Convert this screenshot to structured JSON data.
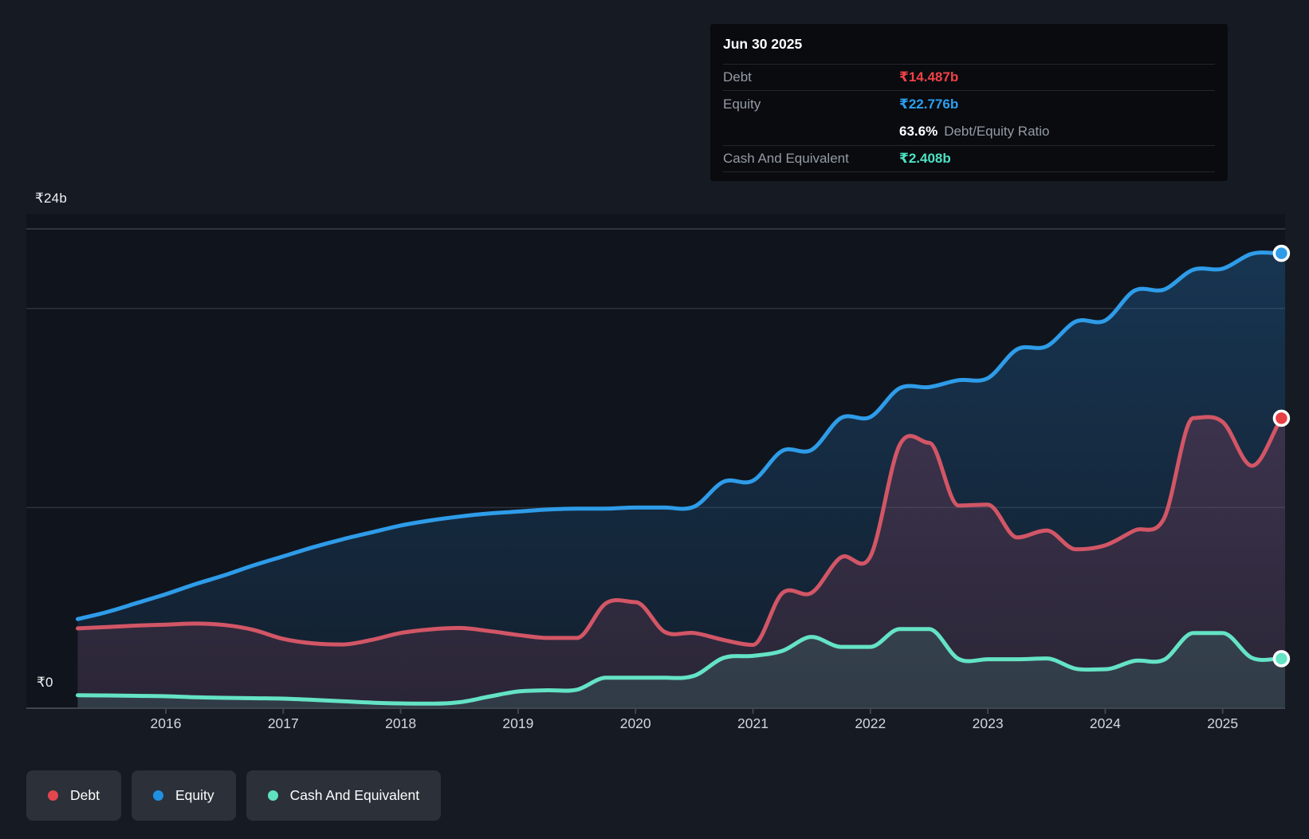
{
  "tooltip": {
    "date": "Jun 30 2025",
    "rows": [
      {
        "label": "Debt",
        "value": "₹14.487b",
        "color": "#f04247"
      },
      {
        "label": "Equity",
        "value": "₹22.776b",
        "color": "#2b9ff0"
      },
      {
        "label": "Cash And Equivalent",
        "value": "₹2.408b",
        "color": "#4ce2c2"
      }
    ],
    "ratio": {
      "value": "63.6%",
      "label": "Debt/Equity Ratio"
    }
  },
  "axis": {
    "y_top_label": "₹24b",
    "y_zero_label": "₹0",
    "years": [
      "2016",
      "2017",
      "2018",
      "2019",
      "2020",
      "2021",
      "2022",
      "2023",
      "2024",
      "2025"
    ]
  },
  "legend": {
    "items": [
      {
        "label": "Debt",
        "color": "#e4464e"
      },
      {
        "label": "Equity",
        "color": "#2090e2"
      },
      {
        "label": "Cash And Equivalent",
        "color": "#5fe1c1"
      }
    ]
  },
  "chart_data": {
    "type": "area",
    "unit": "₹ billions (INR)",
    "xlabel": "Year",
    "ylabel": "₹ value",
    "ylim": [
      0,
      24
    ],
    "x_range": [
      2015.25,
      2025.5
    ],
    "grid": "horizontal",
    "legend_position": "bottom-left",
    "plot_bg": "#10151d",
    "axis_color": "#40454d",
    "gridline_strong": "#3a3f47",
    "gridline_faint": "#2c313a",
    "x_ticks": [
      2016,
      2017,
      2018,
      2019,
      2020,
      2021,
      2022,
      2023,
      2024,
      2025
    ],
    "y_gridlines": [
      {
        "value": 24,
        "label": "₹24b",
        "strong": true
      },
      {
        "value": 20,
        "label": "",
        "strong": false
      },
      {
        "value": 10,
        "label": "",
        "strong": false
      },
      {
        "value": 0,
        "label": "₹0",
        "strong": true
      }
    ],
    "series": [
      {
        "name": "Equity",
        "color": "#2e9ce9",
        "dot_color": "#2e9ce9",
        "fill_from": "rgba(40,125,200,0.32)",
        "fill_to": "rgba(40,125,200,0.10)",
        "end_value": 22.776,
        "points": [
          [
            2015.25,
            4.4
          ],
          [
            2015.5,
            4.75
          ],
          [
            2015.75,
            5.2
          ],
          [
            2016,
            5.65
          ],
          [
            2016.25,
            6.15
          ],
          [
            2016.5,
            6.6
          ],
          [
            2016.75,
            7.1
          ],
          [
            2017,
            7.55
          ],
          [
            2017.25,
            8.0
          ],
          [
            2017.5,
            8.4
          ],
          [
            2017.75,
            8.75
          ],
          [
            2018,
            9.1
          ],
          [
            2018.25,
            9.35
          ],
          [
            2018.5,
            9.55
          ],
          [
            2018.75,
            9.7
          ],
          [
            2019,
            9.8
          ],
          [
            2019.25,
            9.9
          ],
          [
            2019.5,
            9.95
          ],
          [
            2019.75,
            9.95
          ],
          [
            2020,
            10.0
          ],
          [
            2020.25,
            10.0
          ],
          [
            2020.5,
            10.05
          ],
          [
            2020.75,
            11.3
          ],
          [
            2021,
            11.35
          ],
          [
            2021.25,
            12.85
          ],
          [
            2021.5,
            12.9
          ],
          [
            2021.75,
            14.5
          ],
          [
            2022,
            14.55
          ],
          [
            2022.25,
            16.0
          ],
          [
            2022.5,
            16.05
          ],
          [
            2022.75,
            16.4
          ],
          [
            2023,
            16.5
          ],
          [
            2023.25,
            17.95
          ],
          [
            2023.5,
            18.1
          ],
          [
            2023.75,
            19.35
          ],
          [
            2024,
            19.4
          ],
          [
            2024.25,
            20.9
          ],
          [
            2024.5,
            20.95
          ],
          [
            2024.75,
            21.95
          ],
          [
            2025,
            22.0
          ],
          [
            2025.25,
            22.75
          ],
          [
            2025.5,
            22.776
          ]
        ]
      },
      {
        "name": "Debt",
        "color": "#d25666",
        "dot_color": "#e93e44",
        "fill_from": "rgba(185,70,100,0.30)",
        "fill_to": "rgba(185,70,100,0.14)",
        "end_value": 14.487,
        "points": [
          [
            2015.25,
            3.93
          ],
          [
            2015.5,
            4.0
          ],
          [
            2015.75,
            4.07
          ],
          [
            2016,
            4.12
          ],
          [
            2016.25,
            4.17
          ],
          [
            2016.5,
            4.1
          ],
          [
            2016.75,
            3.85
          ],
          [
            2017,
            3.4
          ],
          [
            2017.25,
            3.18
          ],
          [
            2017.5,
            3.12
          ],
          [
            2017.75,
            3.35
          ],
          [
            2018,
            3.7
          ],
          [
            2018.25,
            3.88
          ],
          [
            2018.5,
            3.95
          ],
          [
            2018.75,
            3.8
          ],
          [
            2019,
            3.6
          ],
          [
            2019.25,
            3.45
          ],
          [
            2019.5,
            3.45
          ],
          [
            2019.75,
            5.2
          ],
          [
            2020,
            5.25
          ],
          [
            2020.25,
            3.75
          ],
          [
            2020.5,
            3.7
          ],
          [
            2020.75,
            3.35
          ],
          [
            2021,
            3.1
          ],
          [
            2021.25,
            5.7
          ],
          [
            2021.5,
            5.72
          ],
          [
            2021.75,
            7.5
          ],
          [
            2022,
            7.55
          ],
          [
            2022.25,
            13.15
          ],
          [
            2022.5,
            13.25
          ],
          [
            2022.75,
            10.1
          ],
          [
            2023,
            10.15
          ],
          [
            2023.25,
            8.5
          ],
          [
            2023.5,
            8.85
          ],
          [
            2023.75,
            7.9
          ],
          [
            2024,
            8.1
          ],
          [
            2024.25,
            8.85
          ],
          [
            2024.5,
            9.45
          ],
          [
            2024.75,
            14.5
          ],
          [
            2025,
            14.3
          ],
          [
            2025.25,
            12.1
          ],
          [
            2025.5,
            14.487
          ]
        ]
      },
      {
        "name": "Cash And Equivalent",
        "color": "#64e3c5",
        "dot_color": "#64e3c5",
        "fill_from": "rgba(95,215,190,0.20)",
        "fill_to": "rgba(95,215,190,0.12)",
        "end_value": 2.408,
        "points": [
          [
            2015.25,
            0.57
          ],
          [
            2015.5,
            0.56
          ],
          [
            2015.75,
            0.54
          ],
          [
            2016,
            0.52
          ],
          [
            2016.25,
            0.47
          ],
          [
            2016.5,
            0.44
          ],
          [
            2016.75,
            0.42
          ],
          [
            2017,
            0.4
          ],
          [
            2017.25,
            0.34
          ],
          [
            2017.5,
            0.27
          ],
          [
            2017.75,
            0.2
          ],
          [
            2018,
            0.16
          ],
          [
            2018.25,
            0.15
          ],
          [
            2018.5,
            0.22
          ],
          [
            2018.75,
            0.5
          ],
          [
            2019,
            0.76
          ],
          [
            2019.25,
            0.82
          ],
          [
            2019.5,
            0.85
          ],
          [
            2019.75,
            1.45
          ],
          [
            2020,
            1.45
          ],
          [
            2020.25,
            1.45
          ],
          [
            2020.5,
            1.55
          ],
          [
            2020.75,
            2.45
          ],
          [
            2021,
            2.55
          ],
          [
            2021.25,
            2.8
          ],
          [
            2021.5,
            3.5
          ],
          [
            2021.75,
            3.0
          ],
          [
            2022,
            3.0
          ],
          [
            2022.25,
            3.9
          ],
          [
            2022.5,
            3.9
          ],
          [
            2022.75,
            2.4
          ],
          [
            2023,
            2.38
          ],
          [
            2023.25,
            2.38
          ],
          [
            2023.5,
            2.42
          ],
          [
            2023.75,
            1.9
          ],
          [
            2024,
            1.88
          ],
          [
            2024.25,
            2.3
          ],
          [
            2024.5,
            2.35
          ],
          [
            2024.75,
            3.7
          ],
          [
            2025,
            3.7
          ],
          [
            2025.25,
            2.45
          ],
          [
            2025.5,
            2.408
          ]
        ]
      }
    ]
  }
}
